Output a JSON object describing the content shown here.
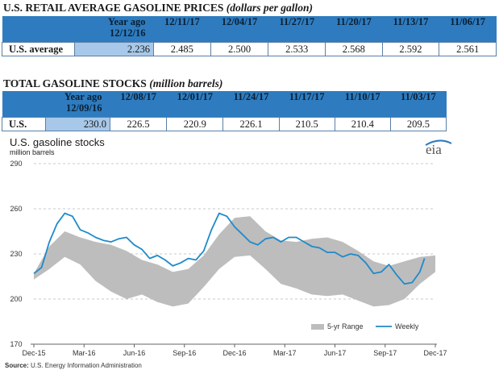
{
  "prices": {
    "title_main": "U.S. RETAIL AVERAGE GASOLINE PRICES",
    "title_unit": "(dollars per gallon)",
    "year_ago_label": "Year ago",
    "year_ago_date": "12/12/16",
    "dates": [
      "12/11/17",
      "12/04/17",
      "11/27/17",
      "11/20/17",
      "11/13/17",
      "11/06/17"
    ],
    "row_label": "U.S. average",
    "year_ago_value": "2.236",
    "values": [
      "2.485",
      "2.500",
      "2.533",
      "2.568",
      "2.592",
      "2.561"
    ]
  },
  "stocks": {
    "title_main": "TOTAL GASOLINE STOCKS",
    "title_unit": "(million barrels)",
    "year_ago_label": "Year ago",
    "year_ago_date": "12/09/16",
    "dates": [
      "12/08/17",
      "12/01/17",
      "11/24/17",
      "11/17/17",
      "11/10/17",
      "11/03/17"
    ],
    "row_label": "U.S.",
    "year_ago_value": "230.0",
    "values": [
      "226.5",
      "220.9",
      "226.1",
      "210.5",
      "210.4",
      "209.5"
    ]
  },
  "logo_text": "eia",
  "colors": {
    "table_header": "#2e7cbf",
    "year_ago_cell": "#a7c8e8",
    "range_fill": "#bdbdbd",
    "weekly_line": "#1f8ac9"
  },
  "chart_data": {
    "type": "line",
    "title": "U.S. gasoline stocks",
    "subtitle": "million barrels",
    "ylim": [
      170,
      290
    ],
    "yticks": [
      170,
      200,
      230,
      260,
      290
    ],
    "grid": "horizontal dashed",
    "xticks": [
      "Dec-15",
      "Mar-16",
      "Jun-16",
      "Sep-16",
      "Dec-16",
      "Mar-17",
      "Jun-17",
      "Sep-17",
      "Dec-17"
    ],
    "x_domain": [
      0,
      26
    ],
    "legend_placement": "bottom-right",
    "source": "Source: U.S. Energy Information Administration",
    "range_band": {
      "name": "5-yr Range",
      "x": [
        0,
        1,
        2,
        3,
        4,
        5,
        6,
        7,
        8,
        9,
        10,
        11,
        12,
        13,
        14,
        15,
        16,
        17,
        18,
        19,
        20,
        21,
        22,
        23,
        24,
        25,
        26
      ],
      "low": [
        213,
        220,
        228,
        223,
        212,
        205,
        200,
        203,
        198,
        195,
        197,
        208,
        220,
        228,
        229,
        220,
        210,
        207,
        203,
        202,
        203,
        199,
        195,
        196,
        200,
        210,
        218
      ],
      "high": [
        217,
        235,
        245,
        241,
        238,
        236,
        232,
        226,
        223,
        218,
        220,
        229,
        243,
        254,
        255,
        245,
        239,
        238,
        240,
        241,
        238,
        232,
        225,
        222,
        225,
        228,
        229
      ]
    },
    "series": [
      {
        "name": "Weekly",
        "x": [
          0,
          0.5,
          1,
          1.5,
          2,
          2.5,
          3,
          3.5,
          4,
          4.5,
          5,
          5.5,
          6,
          6.5,
          7,
          7.5,
          8,
          8.5,
          9,
          9.5,
          10,
          10.5,
          11,
          11.5,
          12,
          12.5,
          13,
          13.5,
          14,
          14.5,
          15,
          15.5,
          16,
          16.5,
          17,
          17.5,
          18,
          18.5,
          19,
          19.5,
          20,
          20.5,
          21,
          21.5,
          22,
          22.5,
          23,
          23.5,
          24,
          24.5,
          25,
          25.3
        ],
        "values": [
          217,
          221,
          238,
          250,
          257,
          255,
          246,
          244,
          241,
          239,
          238,
          240,
          241,
          236,
          233,
          227,
          229,
          226,
          222,
          224,
          227,
          226,
          232,
          246,
          257,
          255,
          248,
          243,
          238,
          236,
          240,
          241,
          238,
          241,
          241,
          238,
          235,
          234,
          231,
          231,
          228,
          230,
          229,
          224,
          217,
          218,
          223,
          216,
          210,
          211,
          218,
          227
        ]
      }
    ]
  }
}
